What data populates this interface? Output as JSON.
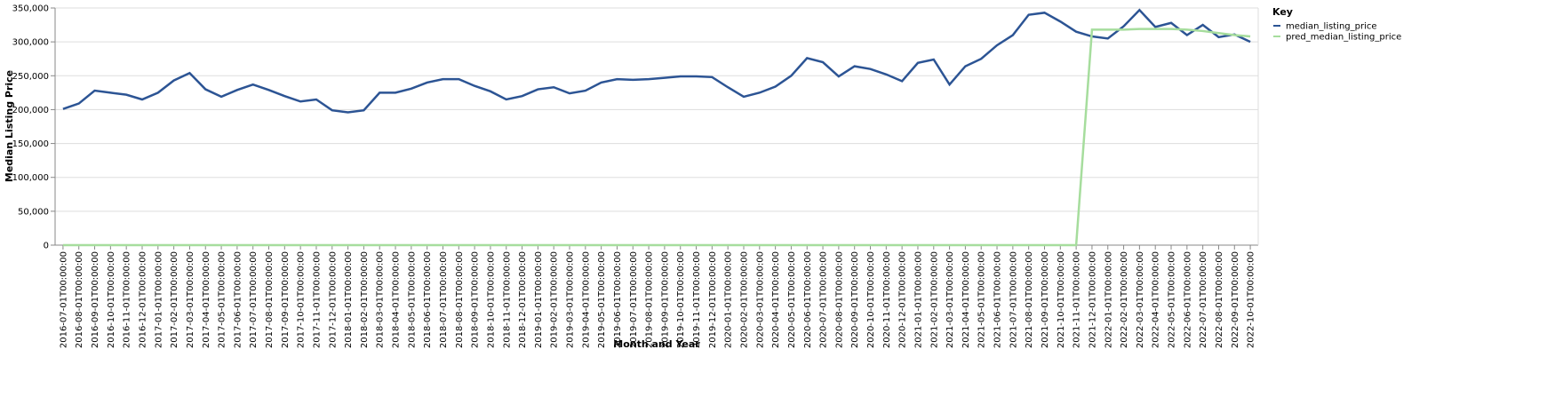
{
  "chart_data": {
    "type": "line",
    "x_label": "Month and Year",
    "y_label": "Median Listing Price",
    "legend_title": "Key",
    "legend_position": "right",
    "grid": true,
    "categories": [
      "2016-07-01T00:00:00",
      "2016-08-01T00:00:00",
      "2016-09-01T00:00:00",
      "2016-10-01T00:00:00",
      "2016-11-01T00:00:00",
      "2016-12-01T00:00:00",
      "2017-01-01T00:00:00",
      "2017-02-01T00:00:00",
      "2017-03-01T00:00:00",
      "2017-04-01T00:00:00",
      "2017-05-01T00:00:00",
      "2017-06-01T00:00:00",
      "2017-07-01T00:00:00",
      "2017-08-01T00:00:00",
      "2017-09-01T00:00:00",
      "2017-10-01T00:00:00",
      "2017-11-01T00:00:00",
      "2017-12-01T00:00:00",
      "2018-01-01T00:00:00",
      "2018-02-01T00:00:00",
      "2018-03-01T00:00:00",
      "2018-04-01T00:00:00",
      "2018-05-01T00:00:00",
      "2018-06-01T00:00:00",
      "2018-07-01T00:00:00",
      "2018-08-01T00:00:00",
      "2018-09-01T00:00:00",
      "2018-10-01T00:00:00",
      "2018-11-01T00:00:00",
      "2018-12-01T00:00:00",
      "2019-01-01T00:00:00",
      "2019-02-01T00:00:00",
      "2019-03-01T00:00:00",
      "2019-04-01T00:00:00",
      "2019-05-01T00:00:00",
      "2019-06-01T00:00:00",
      "2019-07-01T00:00:00",
      "2019-08-01T00:00:00",
      "2019-09-01T00:00:00",
      "2019-10-01T00:00:00",
      "2019-11-01T00:00:00",
      "2019-12-01T00:00:00",
      "2020-01-01T00:00:00",
      "2020-02-01T00:00:00",
      "2020-03-01T00:00:00",
      "2020-04-01T00:00:00",
      "2020-05-01T00:00:00",
      "2020-06-01T00:00:00",
      "2020-07-01T00:00:00",
      "2020-08-01T00:00:00",
      "2020-09-01T00:00:00",
      "2020-10-01T00:00:00",
      "2020-11-01T00:00:00",
      "2020-12-01T00:00:00",
      "2021-01-01T00:00:00",
      "2021-02-01T00:00:00",
      "2021-03-01T00:00:00",
      "2021-04-01T00:00:00",
      "2021-05-01T00:00:00",
      "2021-06-01T00:00:00",
      "2021-07-01T00:00:00",
      "2021-08-01T00:00:00",
      "2021-09-01T00:00:00",
      "2021-10-01T00:00:00",
      "2021-11-01T00:00:00",
      "2021-12-01T00:00:00",
      "2022-01-01T00:00:00",
      "2022-02-01T00:00:00",
      "2022-03-01T00:00:00",
      "2022-04-01T00:00:00",
      "2022-05-01T00:00:00",
      "2022-06-01T00:00:00",
      "2022-07-01T00:00:00",
      "2022-08-01T00:00:00",
      "2022-09-01T00:00:00",
      "2022-10-01T00:00:00"
    ],
    "series": [
      {
        "name": "median_listing_price",
        "color": "#2c5494",
        "values": [
          201000,
          209000,
          228000,
          225000,
          222000,
          215000,
          225000,
          243000,
          254000,
          230000,
          219000,
          229000,
          237000,
          229000,
          220000,
          212000,
          215000,
          199000,
          196000,
          199000,
          225000,
          225000,
          231000,
          240000,
          245000,
          245000,
          235000,
          227000,
          215000,
          220000,
          230000,
          233000,
          224000,
          228000,
          240000,
          245000,
          244000,
          245000,
          247000,
          249000,
          249000,
          248000,
          233000,
          219000,
          225000,
          234000,
          250000,
          276000,
          270000,
          249000,
          264000,
          260000,
          252000,
          242000,
          269000,
          274000,
          237000,
          264000,
          275000,
          295000,
          310000,
          340000,
          343000,
          330000,
          315000,
          308000,
          305000,
          323000,
          347000,
          322000,
          328000,
          310000,
          325000,
          307000,
          311000,
          300000
        ]
      },
      {
        "name": "pred_median_listing_price",
        "color": "#a6dd9d",
        "values": [
          0,
          0,
          0,
          0,
          0,
          0,
          0,
          0,
          0,
          0,
          0,
          0,
          0,
          0,
          0,
          0,
          0,
          0,
          0,
          0,
          0,
          0,
          0,
          0,
          0,
          0,
          0,
          0,
          0,
          0,
          0,
          0,
          0,
          0,
          0,
          0,
          0,
          0,
          0,
          0,
          0,
          0,
          0,
          0,
          0,
          0,
          0,
          0,
          0,
          0,
          0,
          0,
          0,
          0,
          0,
          0,
          0,
          0,
          0,
          0,
          0,
          0,
          0,
          0,
          0,
          318000,
          318000,
          318000,
          319000,
          319000,
          319000,
          318000,
          316000,
          313000,
          310000,
          308000
        ]
      }
    ],
    "ylim": [
      0,
      350000
    ],
    "yticks": [
      0,
      {
        "value": 50000,
        "label": "50,000"
      },
      {
        "value": 100000,
        "label": "100,000"
      },
      {
        "value": 150000,
        "label": "150,000"
      },
      {
        "value": 200000,
        "label": "200,000"
      },
      {
        "value": 250000,
        "label": "250,000"
      },
      {
        "value": 300000,
        "label": "300,000"
      },
      {
        "value": 350000,
        "label": "350,000"
      }
    ]
  }
}
